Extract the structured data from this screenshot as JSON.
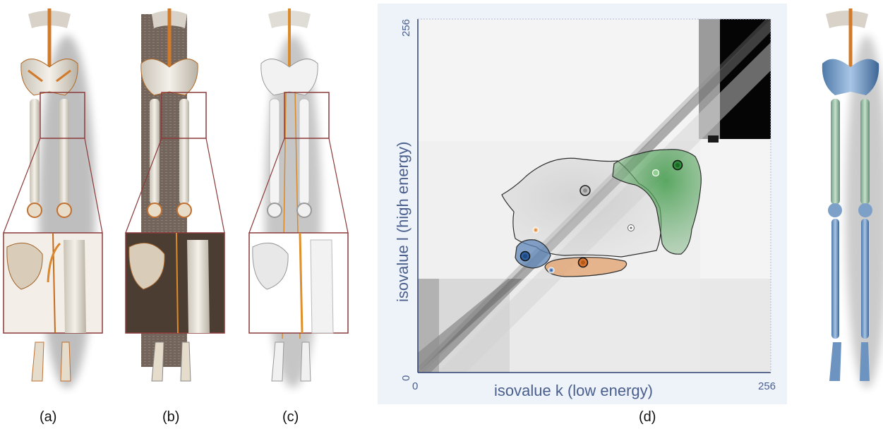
{
  "captions": {
    "a": "(a)",
    "b": "(b)",
    "c": "(c)",
    "d": "(d)"
  },
  "plot": {
    "x_label": "isovalue k (low energy)",
    "y_label": "isovalue l (high energy)",
    "x_tick_min": "0",
    "x_tick_max": "256",
    "y_tick_min": "0",
    "y_tick_max": "256",
    "region_colors": {
      "gray": "#9a9a9a",
      "green": "#3f8f45",
      "blue": "#3f74b3",
      "orange": "#d9843b"
    }
  },
  "renderings": [
    {
      "id": "a",
      "style": "bone-orange"
    },
    {
      "id": "b",
      "style": "bone-dark-table"
    },
    {
      "id": "c",
      "style": "bone-white-vessel"
    },
    {
      "id": "e",
      "style": "bone-blue-green"
    }
  ]
}
